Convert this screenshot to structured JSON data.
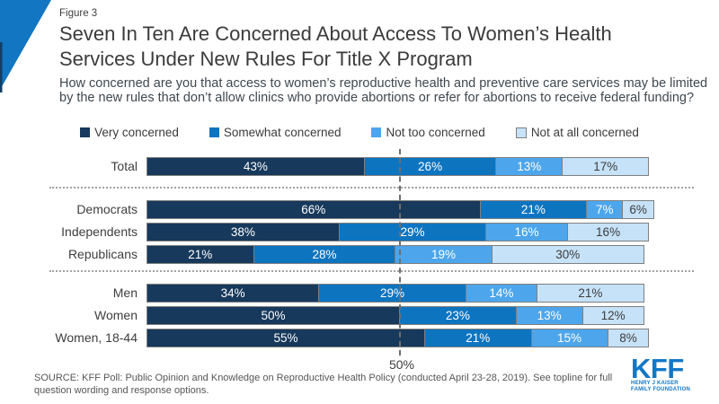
{
  "header": {
    "figure_label": "Figure 3",
    "title": "Seven In Ten Are Concerned About Access To Women’s Health Services Under New Rules For Title X Program",
    "subtitle": "How concerned are you that access to women’s reproductive health and preventive care services may be limited by the new rules that don’t allow clinics who provide abortions or refer for abortions to receive federal funding?"
  },
  "colors": {
    "very_concerned": "#17395c",
    "somewhat_concerned": "#0d74c0",
    "not_too_concerned": "#4da6ec",
    "not_at_all_concerned": "#c6e2f8",
    "bar_border": "#7f7f7f",
    "kff_blue": "#1377c6",
    "corner_triangle": "#1276c2",
    "corner_strip": "#123e66"
  },
  "chart_data": {
    "type": "bar",
    "orientation": "horizontal-stacked",
    "xlim": [
      0,
      100
    ],
    "legend": [
      "Very concerned",
      "Somewhat concerned",
      "Not too concerned",
      "Not at all concerned"
    ],
    "series_colors": [
      "#17395c",
      "#0d74c0",
      "#4da6ec",
      "#c6e2f8"
    ],
    "value_suffix": "%",
    "groups": [
      {
        "rows": [
          {
            "label": "Total",
            "values": [
              43,
              26,
              13,
              17
            ]
          }
        ]
      },
      {
        "rows": [
          {
            "label": "Democrats",
            "values": [
              66,
              21,
              7,
              6
            ]
          },
          {
            "label": "Independents",
            "values": [
              38,
              29,
              16,
              16
            ]
          },
          {
            "label": "Republicans",
            "values": [
              21,
              28,
              19,
              30
            ]
          }
        ]
      },
      {
        "rows": [
          {
            "label": "Men",
            "values": [
              34,
              29,
              14,
              21
            ]
          },
          {
            "label": "Women",
            "values": [
              50,
              23,
              13,
              12
            ]
          },
          {
            "label": "Women, 18-44",
            "values": [
              55,
              21,
              15,
              8
            ]
          }
        ]
      }
    ],
    "reference_line": {
      "value": 50,
      "label": "50%"
    }
  },
  "footer": {
    "source": "SOURCE: KFF Poll: Public Opinion and Knowledge on Reproductive Health Policy (conducted April 23-28, 2019). See topline for full question wording and response options."
  },
  "logo": {
    "text": "KFF",
    "sub_line1": "HENRY J KAISER",
    "sub_line2": "FAMILY FOUNDATION"
  }
}
